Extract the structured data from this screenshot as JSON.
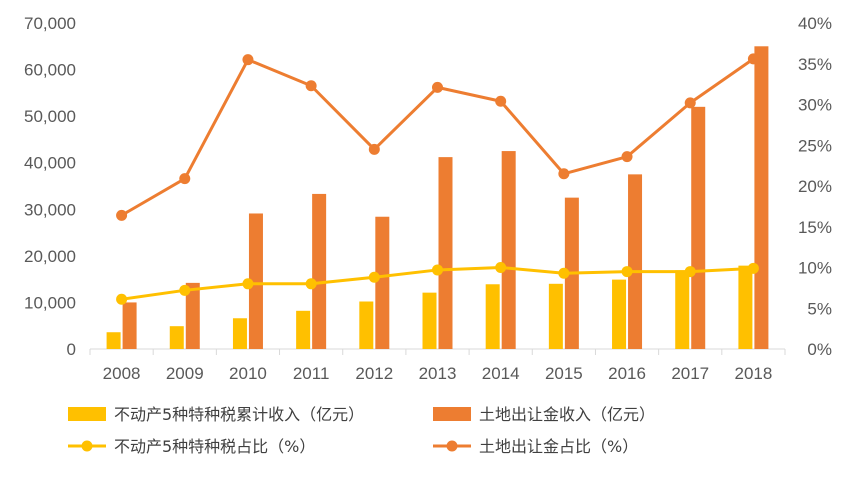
{
  "chart_data": {
    "type": "bar",
    "categories": [
      "2008",
      "2009",
      "2010",
      "2011",
      "2012",
      "2013",
      "2014",
      "2015",
      "2016",
      "2017",
      "2018"
    ],
    "series": [
      {
        "name": "不动产5种特种税累计收入（亿元）",
        "kind": "bar",
        "axis": "left",
        "color": "#FFC000",
        "values": [
          3600,
          4900,
          6600,
          8200,
          10200,
          12100,
          13900,
          14000,
          14900,
          16900,
          17900
        ]
      },
      {
        "name": "土地出让金收入（亿元）",
        "kind": "bar",
        "axis": "left",
        "color": "#ED7D31",
        "values": [
          10000,
          14200,
          29100,
          33300,
          28400,
          41200,
          42500,
          32500,
          37500,
          52000,
          65000
        ]
      },
      {
        "name": "不动产5种特种税占比（%）",
        "kind": "line",
        "axis": "right",
        "color": "#FFC000",
        "values": [
          6.1,
          7.2,
          8.0,
          8.0,
          8.8,
          9.7,
          10.0,
          9.3,
          9.5,
          9.5,
          9.9
        ]
      },
      {
        "name": "土地出让金占比（%）",
        "kind": "line",
        "axis": "right",
        "color": "#ED7D31",
        "values": [
          16.4,
          20.9,
          35.5,
          32.3,
          24.5,
          32.1,
          30.4,
          21.5,
          23.6,
          30.2,
          35.6
        ]
      }
    ],
    "left_axis": {
      "ylim": [
        0,
        70000
      ],
      "ticks": [
        0,
        10000,
        20000,
        30000,
        40000,
        50000,
        60000,
        70000
      ],
      "tick_labels": [
        "0",
        "10,000",
        "20,000",
        "30,000",
        "40,000",
        "50,000",
        "60,000",
        "70,000"
      ]
    },
    "right_axis": {
      "ylim": [
        0,
        40
      ],
      "ticks": [
        0,
        5,
        10,
        15,
        20,
        25,
        30,
        35,
        40
      ],
      "tick_labels": [
        "0%",
        "5%",
        "10%",
        "15%",
        "20%",
        "25%",
        "30%",
        "35%",
        "40%"
      ]
    },
    "title": "",
    "xlabel": "",
    "ylabel": "",
    "grid": false,
    "legend_position": "bottom"
  }
}
